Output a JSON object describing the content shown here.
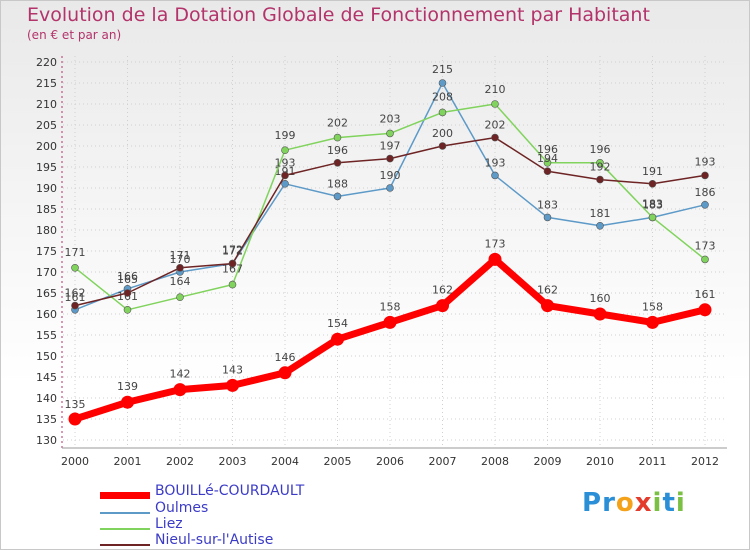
{
  "header": {
    "title": "Evolution de la Dotation Globale de Fonctionnement par Habitant",
    "subtitle": "(en € et par an)"
  },
  "logo": {
    "letters": [
      "P",
      "r",
      "o",
      "x",
      "i",
      "t",
      "i"
    ],
    "colors": [
      "#2a8fd6",
      "#2a8fd6",
      "#f3a21a",
      "#e33b2c",
      "#7ac143",
      "#2a8fd6",
      "#7ac143"
    ]
  },
  "chart_data": {
    "type": "line",
    "title": "Evolution de la Dotation Globale de Fonctionnement par Habitant",
    "ylabel": "(en € et par an)",
    "xlabel": "",
    "categories": [
      "2000",
      "2001",
      "2002",
      "2003",
      "2004",
      "2005",
      "2006",
      "2007",
      "2008",
      "2009",
      "2010",
      "2011",
      "2012"
    ],
    "ylim": [
      130,
      220
    ],
    "yticks": [
      130,
      135,
      140,
      145,
      150,
      155,
      160,
      165,
      170,
      175,
      180,
      185,
      190,
      195,
      200,
      205,
      210,
      215,
      220
    ],
    "series": [
      {
        "name": "BOUILLé-COURDAULT",
        "color": "#ff0000",
        "values": [
          135,
          139,
          142,
          143,
          146,
          154,
          158,
          162,
          173,
          162,
          160,
          158,
          161
        ]
      },
      {
        "name": "Oulmes",
        "color": "#5d9ac8",
        "values": [
          161,
          166,
          170,
          172,
          191,
          188,
          190,
          215,
          193,
          183,
          181,
          183,
          186
        ]
      },
      {
        "name": "Liez",
        "color": "#80d35c",
        "values": [
          171,
          161,
          164,
          167,
          199,
          202,
          203,
          208,
          210,
          196,
          196,
          183,
          173
        ]
      },
      {
        "name": "Nieul-sur-l'Autise",
        "color": "#6e2424",
        "values": [
          162,
          165,
          171,
          172,
          193,
          196,
          197,
          200,
          202,
          194,
          192,
          191,
          193
        ]
      }
    ],
    "legend": "bottom-left",
    "grid": true
  }
}
